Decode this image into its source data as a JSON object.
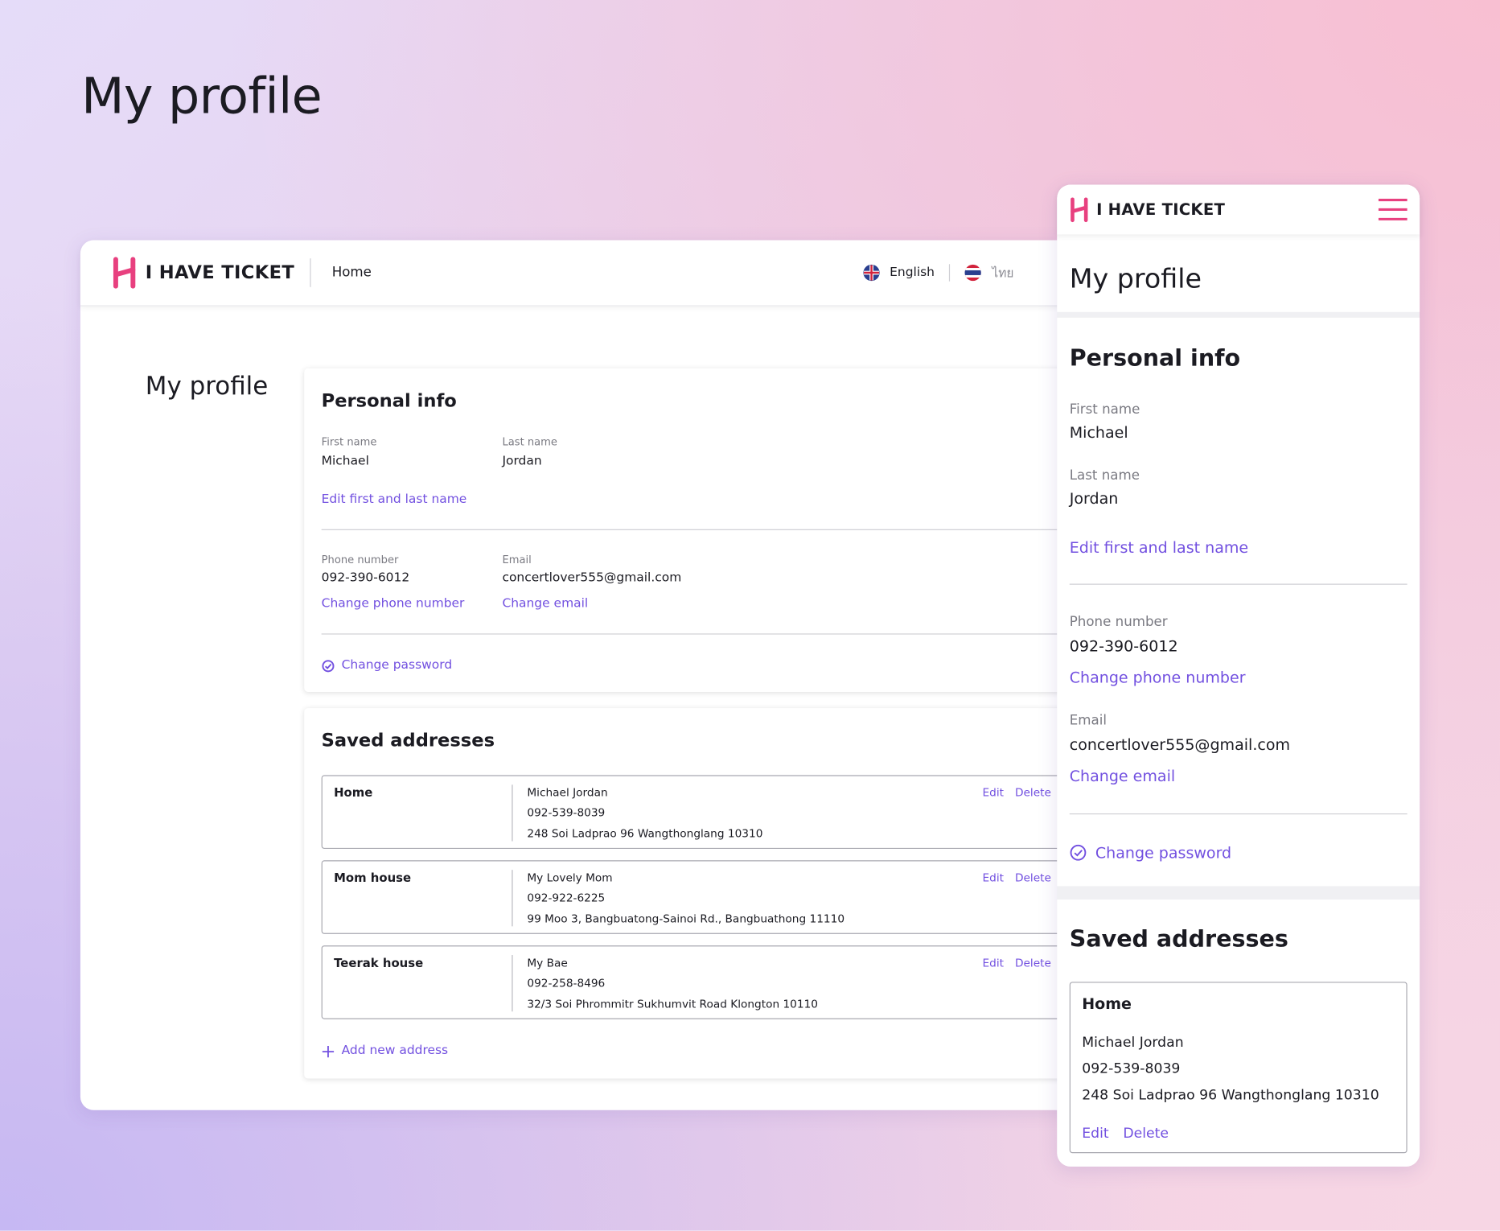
{
  "page_title": "My profile",
  "brand": "I HAVE TICKET",
  "nav": {
    "home": "Home"
  },
  "languages": [
    "English",
    "ไทย"
  ],
  "profile": {
    "heading": "My profile",
    "personal_info": {
      "title": "Personal info",
      "first_name": {
        "label": "First name",
        "value": "Michael"
      },
      "last_name": {
        "label": "Last name",
        "value": "Jordan"
      },
      "edit_name": "Edit first and last name",
      "phone": {
        "label": "Phone number",
        "value": "092-390-6012",
        "action": "Change phone number"
      },
      "email": {
        "label": "Email",
        "value": "concertlover555@gmail.com",
        "action": "Change email"
      },
      "change_password": "Change password"
    },
    "saved_addresses": {
      "title": "Saved addresses",
      "edit": "Edit",
      "delete": "Delete",
      "add_new": "Add new address",
      "items": [
        {
          "label": "Home",
          "name": "Michael Jordan",
          "phone": "092-539-8039",
          "address": "248 Soi Ladprao 96 Wangthonglang 10310"
        },
        {
          "label": "Mom house",
          "name": "My Lovely Mom",
          "phone": "092-922-6225",
          "address": "99 Moo 3, Bangbuatong-Sainoi Rd., Bangbuathong 11110"
        },
        {
          "label": "Teerak house",
          "name": "My Bae",
          "phone": "092-258-8496",
          "address": "32/3 Soi Phrommitr Sukhumvit Road Klongton 10110"
        }
      ]
    }
  }
}
